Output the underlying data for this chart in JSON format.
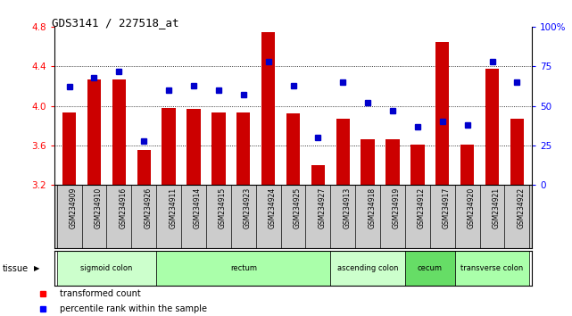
{
  "title": "GDS3141 / 227518_at",
  "samples": [
    "GSM234909",
    "GSM234910",
    "GSM234916",
    "GSM234926",
    "GSM234911",
    "GSM234914",
    "GSM234915",
    "GSM234923",
    "GSM234924",
    "GSM234925",
    "GSM234927",
    "GSM234913",
    "GSM234918",
    "GSM234919",
    "GSM234912",
    "GSM234917",
    "GSM234920",
    "GSM234921",
    "GSM234922"
  ],
  "bar_values": [
    3.93,
    4.27,
    4.27,
    3.55,
    3.98,
    3.97,
    3.93,
    3.93,
    4.75,
    3.92,
    3.4,
    3.87,
    3.66,
    3.66,
    3.61,
    4.65,
    3.61,
    4.38,
    3.87
  ],
  "percentile_values": [
    62,
    68,
    72,
    28,
    60,
    63,
    60,
    57,
    78,
    63,
    30,
    65,
    52,
    47,
    37,
    40,
    38,
    78,
    65
  ],
  "tissue_groups": [
    {
      "label": "sigmoid colon",
      "start": 0,
      "end": 3
    },
    {
      "label": "rectum",
      "start": 4,
      "end": 10
    },
    {
      "label": "ascending colon",
      "start": 11,
      "end": 13
    },
    {
      "label": "cecum",
      "start": 14,
      "end": 15
    },
    {
      "label": "transverse colon",
      "start": 16,
      "end": 18
    }
  ],
  "tissue_colors": {
    "sigmoid colon": "#ccffcc",
    "rectum": "#aaffaa",
    "ascending colon": "#ccffcc",
    "cecum": "#66dd66",
    "transverse colon": "#aaffaa"
  },
  "bar_color": "#cc0000",
  "dot_color": "#0000cc",
  "ylim_left": [
    3.2,
    4.8
  ],
  "ylim_right": [
    0,
    100
  ],
  "yticks_left": [
    3.2,
    3.6,
    4.0,
    4.4,
    4.8
  ],
  "yticks_right": [
    0,
    25,
    50,
    75,
    100
  ],
  "grid_values": [
    3.6,
    4.0,
    4.4
  ],
  "label_area_color": "#cccccc",
  "bar_width": 0.55
}
